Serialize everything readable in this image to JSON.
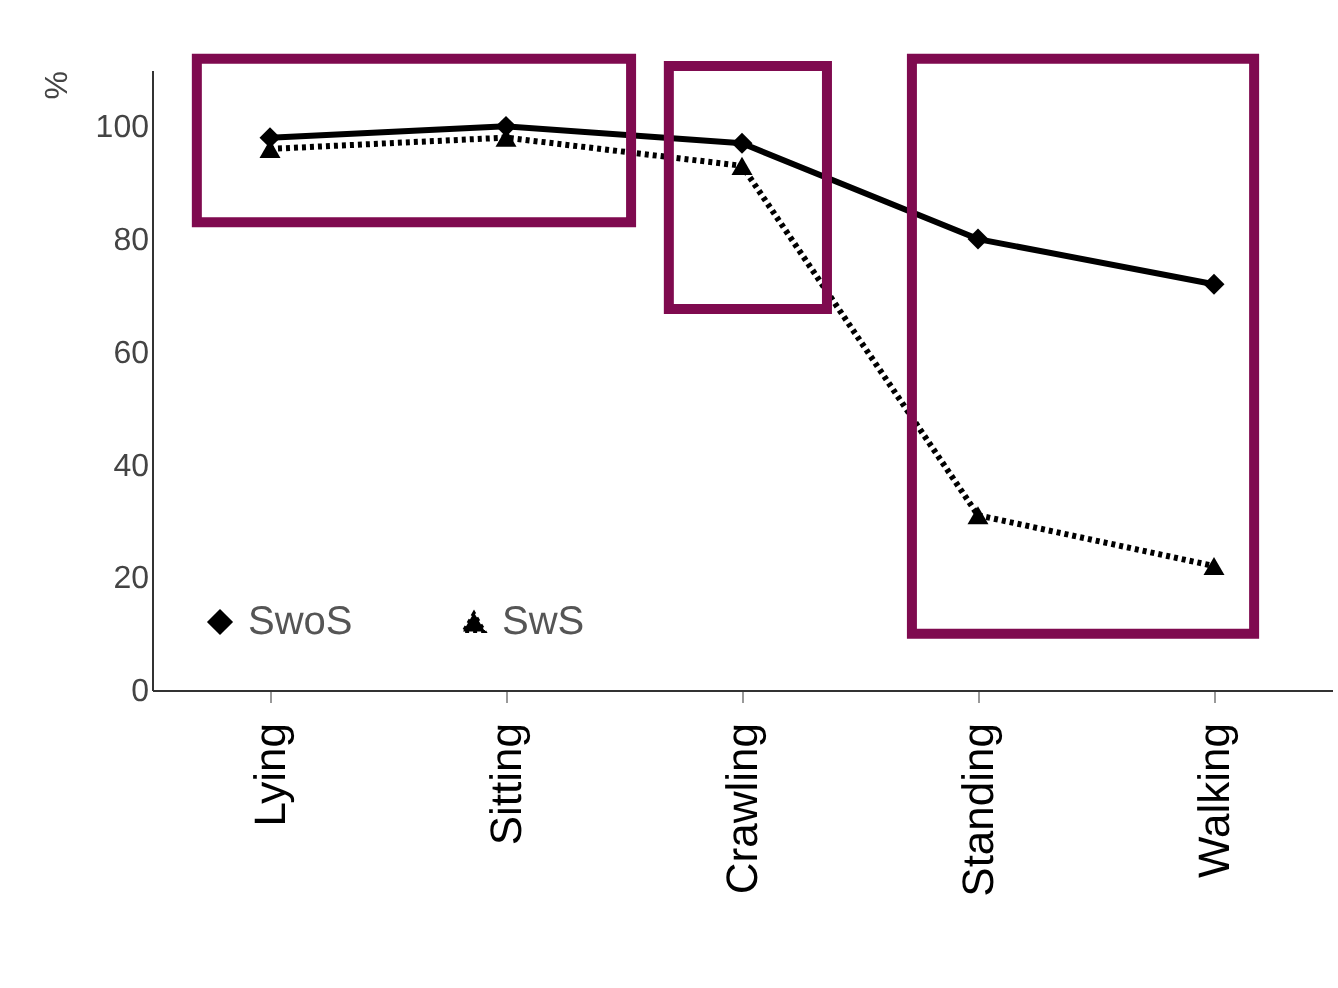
{
  "chart_data": {
    "type": "line",
    "ylabel": "%",
    "categories": [
      "Lying",
      "Sitting",
      "Crawling",
      "Standing",
      "Walking"
    ],
    "series": [
      {
        "name": "SwoS",
        "color": "#000000",
        "marker": "diamond",
        "line_style": "solid",
        "values": [
          98,
          100,
          97,
          80,
          72
        ]
      },
      {
        "name": "SwS",
        "color": "#000000",
        "marker": "triangle",
        "line_style": "dotted",
        "values": [
          96,
          98,
          93,
          31,
          22
        ]
      }
    ],
    "ylim": [
      0,
      110
    ],
    "yticks": [
      0,
      20,
      40,
      60,
      80,
      100
    ],
    "grid": false,
    "legend": "bottom left"
  }
}
